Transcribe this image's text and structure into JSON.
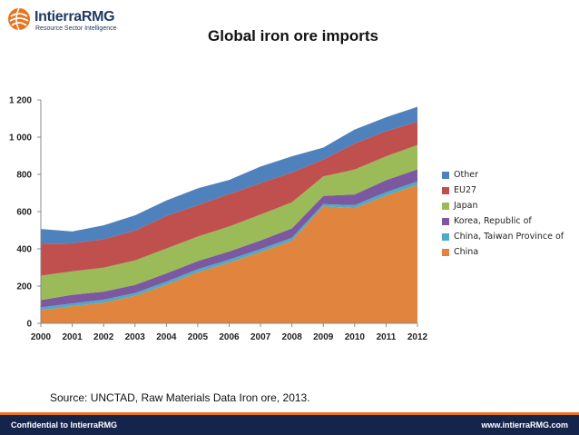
{
  "logo": {
    "name": "IntierraRMG",
    "tagline": "Resource Sector Intelligence"
  },
  "source_note": "Source: UNCTAD, Raw Materials Data Iron ore, 2013.",
  "footer": {
    "left": "Confidential to IntierraRMG",
    "right": "www.intierraRMG.com"
  },
  "colors": {
    "footer_bg": "#15244a",
    "footer_accent": "#e8741e",
    "brand": "#1f3b64"
  },
  "chart_data": {
    "type": "area",
    "stacked": true,
    "title": "Global iron ore imports",
    "xlabel": "",
    "ylabel": "",
    "categories": [
      "2000",
      "2001",
      "2002",
      "2003",
      "2004",
      "2005",
      "2006",
      "2007",
      "2008",
      "2009",
      "2010",
      "2011",
      "2012"
    ],
    "ylim": [
      0,
      1200
    ],
    "yticks": [
      0,
      200,
      400,
      600,
      800,
      1000,
      1200
    ],
    "ytick_labels": [
      "0",
      "200",
      "400",
      "600",
      "800",
      "1 000",
      "1 200"
    ],
    "grid": false,
    "legend_position": "right",
    "series": [
      {
        "name": "China",
        "color": "#e0843e",
        "values": [
          70,
          92,
          111,
          148,
          208,
          275,
          326,
          383,
          444,
          628,
          619,
          686,
          744
        ]
      },
      {
        "name": "China, Taiwan Province of",
        "color": "#4bacc6",
        "values": [
          16,
          15,
          16,
          15,
          16,
          16,
          16,
          16,
          16,
          12,
          16,
          18,
          18
        ]
      },
      {
        "name": "Korea, Republic of",
        "color": "#7c58a0",
        "values": [
          39,
          46,
          43,
          43,
          44,
          43,
          44,
          46,
          50,
          44,
          57,
          65,
          65
        ]
      },
      {
        "name": "Japan",
        "color": "#9bbb59",
        "values": [
          131,
          126,
          129,
          132,
          134,
          132,
          134,
          139,
          140,
          105,
          134,
          128,
          131
        ]
      },
      {
        "name": "EU27",
        "color": "#c0504d",
        "values": [
          171,
          150,
          153,
          160,
          175,
          169,
          174,
          169,
          160,
          90,
          140,
          135,
          125
        ]
      },
      {
        "name": "Other",
        "color": "#4f81bd",
        "values": [
          80,
          64,
          74,
          82,
          83,
          90,
          76,
          89,
          87,
          65,
          75,
          75,
          80
        ]
      }
    ]
  }
}
